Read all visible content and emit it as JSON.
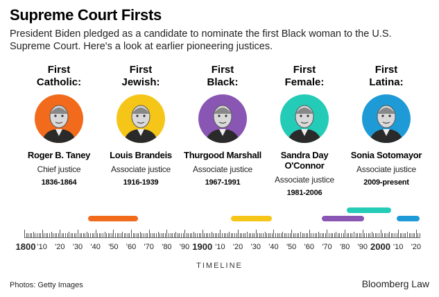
{
  "header": {
    "title": "Supreme Court Firsts",
    "subtitle": "President Biden pledged as a candidate to nominate the first Black woman to the U.S. Supreme Court. Here's a look at earlier pioneering justices."
  },
  "justices": [
    {
      "category_line1": "First",
      "category_line2": "Catholic:",
      "name": "Roger B. Taney",
      "role": "Chief justice",
      "years": "1836-1864",
      "color": "#f26a1b",
      "start": 1836,
      "end": 1864
    },
    {
      "category_line1": "First",
      "category_line2": "Jewish:",
      "name": "Louis Brandeis",
      "role": "Associate justice",
      "years": "1916-1939",
      "color": "#f5c518",
      "start": 1916,
      "end": 1939
    },
    {
      "category_line1": "First",
      "category_line2": "Black:",
      "name": "Thurgood Marshall",
      "role": "Associate justice",
      "years": "1967-1991",
      "color": "#8a56b3",
      "start": 1967,
      "end": 1991
    },
    {
      "category_line1": "First",
      "category_line2": "Female:",
      "name": "Sandra Day O'Connor",
      "role": "Associate justice",
      "years": "1981-2006",
      "color": "#24cbb7",
      "start": 1981,
      "end": 2006
    },
    {
      "category_line1": "First",
      "category_line2": "Latina:",
      "name": "Sonia Sotomayor",
      "role": "Associate justice",
      "years": "2009-present",
      "color": "#1e9ad6",
      "start": 2009,
      "end": 2022
    }
  ],
  "timeline": {
    "start_year": 1800,
    "end_year": 2022,
    "labels": [
      "1800",
      "'10",
      "'20",
      "'30",
      "'40",
      "'50",
      "'60",
      "'70",
      "'80",
      "'90",
      "1900",
      "'10",
      "'20",
      "'30",
      "'40",
      "'50",
      "'60",
      "'70",
      "'80",
      "'90",
      "2000",
      "'10",
      "'20"
    ],
    "major_labels": [
      "1800",
      "1900",
      "2000"
    ],
    "caption": "TIMELINE"
  },
  "footer": {
    "credit": "Photos: Getty Images",
    "brand": "Bloomberg Law"
  }
}
